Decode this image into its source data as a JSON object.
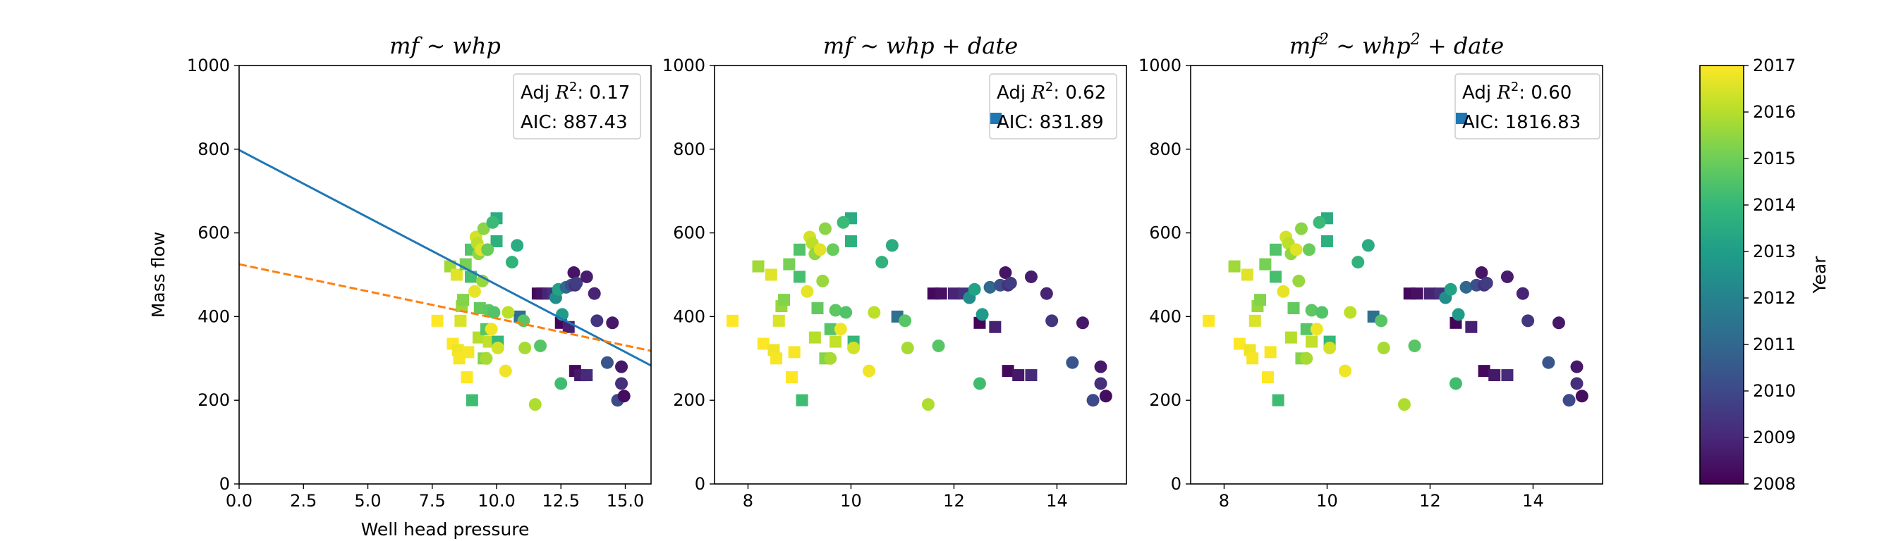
{
  "chart_data": [
    {
      "type": "scatter",
      "title": "mf ~ whp",
      "title_parts": {
        "main": "mf ~ whp",
        "sup1": "",
        "mid": "",
        "sup2": "",
        "tail": ""
      },
      "xlabel": "Well head pressure",
      "ylabel": "Mass flow",
      "xlim": [
        0,
        16
      ],
      "ylim": [
        0,
        1000
      ],
      "xticks": [
        0,
        2.5,
        5,
        7.5,
        10,
        12.5,
        15
      ],
      "xtick_labels": [
        "0.0",
        "2.5",
        "5.0",
        "7.5",
        "10.0",
        "12.5",
        "15.0"
      ],
      "yticks": [
        0,
        200,
        400,
        600,
        800,
        1000
      ],
      "ytick_labels": [
        "0",
        "200",
        "400",
        "600",
        "800",
        "1000"
      ],
      "lines": [
        {
          "x": [
            0,
            16
          ],
          "y": [
            798,
            283
          ],
          "color": "#1f77b4",
          "style": "solid"
        },
        {
          "x": [
            0,
            16
          ],
          "y": [
            525,
            318
          ],
          "color": "#ff7f0e",
          "style": "dashed"
        }
      ],
      "legend_box": {
        "line1_prefix": "Adj ",
        "line1_var": "R",
        "line1_sup": "2",
        "line1_value": ": 0.17",
        "line2": "AIC: 887.43",
        "show_marker": false
      }
    },
    {
      "type": "scatter",
      "title": "mf ~ whp + date",
      "title_parts": {
        "main": "mf ~ whp + date",
        "sup1": "",
        "mid": "",
        "sup2": "",
        "tail": ""
      },
      "xlabel": "",
      "ylabel": "",
      "xlim": [
        7.35,
        15.35
      ],
      "ylim": [
        0,
        1000
      ],
      "xticks": [
        8,
        10,
        12,
        14
      ],
      "xtick_labels": [
        "8",
        "10",
        "12",
        "14"
      ],
      "yticks": [
        0,
        200,
        400,
        600,
        800,
        1000
      ],
      "ytick_labels": [
        "0",
        "200",
        "400",
        "600",
        "800",
        "1000"
      ],
      "lines": [],
      "legend_box": {
        "line1_prefix": "Adj ",
        "line1_var": "R",
        "line1_sup": "2",
        "line1_value": ": 0.62",
        "line2": "AIC: 831.89",
        "show_marker": true
      }
    },
    {
      "type": "scatter",
      "title": "mf2 ~ whp2 + date",
      "title_parts": {
        "main": "mf",
        "sup1": "2",
        "mid": " ~ whp",
        "sup2": "2",
        "tail": " + date"
      },
      "xlabel": "",
      "ylabel": "",
      "xlim": [
        7.35,
        15.35
      ],
      "ylim": [
        0,
        1000
      ],
      "xticks": [
        8,
        10,
        12,
        14
      ],
      "xtick_labels": [
        "8",
        "10",
        "12",
        "14"
      ],
      "yticks": [
        0,
        200,
        400,
        600,
        800,
        1000
      ],
      "ytick_labels": [
        "0",
        "200",
        "400",
        "600",
        "800",
        "1000"
      ],
      "lines": [],
      "legend_box": {
        "line1_prefix": "Adj ",
        "line1_var": "R",
        "line1_sup": "2",
        "line1_value": ": 0.60",
        "line2": "AIC: 1816.83",
        "show_marker": true
      }
    }
  ],
  "points": [
    {
      "x": 7.7,
      "y": 390,
      "year": 2017.0,
      "m": "s"
    },
    {
      "x": 8.2,
      "y": 520,
      "year": 2015.7,
      "m": "s"
    },
    {
      "x": 8.3,
      "y": 335,
      "year": 2017.0,
      "m": "s"
    },
    {
      "x": 8.45,
      "y": 500,
      "year": 2016.6,
      "m": "s"
    },
    {
      "x": 8.5,
      "y": 320,
      "year": 2016.8,
      "m": "s"
    },
    {
      "x": 8.55,
      "y": 300,
      "year": 2016.9,
      "m": "s"
    },
    {
      "x": 8.6,
      "y": 390,
      "year": 2016.5,
      "m": "s"
    },
    {
      "x": 8.65,
      "y": 425,
      "year": 2015.6,
      "m": "s"
    },
    {
      "x": 8.7,
      "y": 440,
      "year": 2015.3,
      "m": "s"
    },
    {
      "x": 8.8,
      "y": 525,
      "year": 2015.1,
      "m": "s"
    },
    {
      "x": 8.85,
      "y": 255,
      "year": 2017.0,
      "m": "s"
    },
    {
      "x": 8.9,
      "y": 315,
      "year": 2016.9,
      "m": "s"
    },
    {
      "x": 9.0,
      "y": 560,
      "year": 2014.5,
      "m": "s"
    },
    {
      "x": 9.0,
      "y": 495,
      "year": 2014.3,
      "m": "s"
    },
    {
      "x": 9.05,
      "y": 200,
      "year": 2014.2,
      "m": "s"
    },
    {
      "x": 9.3,
      "y": 350,
      "year": 2016.0,
      "m": "s"
    },
    {
      "x": 9.35,
      "y": 420,
      "year": 2014.8,
      "m": "s"
    },
    {
      "x": 9.5,
      "y": 300,
      "year": 2015.3,
      "m": "s"
    },
    {
      "x": 9.6,
      "y": 370,
      "year": 2014.6,
      "m": "s"
    },
    {
      "x": 9.7,
      "y": 340,
      "year": 2016.2,
      "m": "s"
    },
    {
      "x": 10.0,
      "y": 635,
      "year": 2013.5,
      "m": "s"
    },
    {
      "x": 10.0,
      "y": 580,
      "year": 2013.7,
      "m": "s"
    },
    {
      "x": 10.05,
      "y": 340,
      "year": 2014.0,
      "m": "s"
    },
    {
      "x": 10.9,
      "y": 400,
      "year": 2011.3,
      "m": "s"
    },
    {
      "x": 11.6,
      "y": 455,
      "year": 2008.2,
      "m": "s"
    },
    {
      "x": 11.75,
      "y": 455,
      "year": 2008.4,
      "m": "s"
    },
    {
      "x": 12.0,
      "y": 455,
      "year": 2008.9,
      "m": "s"
    },
    {
      "x": 12.2,
      "y": 455,
      "year": 2009.3,
      "m": "s"
    },
    {
      "x": 12.5,
      "y": 385,
      "year": 2008.1,
      "m": "s"
    },
    {
      "x": 12.8,
      "y": 375,
      "year": 2008.8,
      "m": "s"
    },
    {
      "x": 13.05,
      "y": 270,
      "year": 2008.2,
      "m": "s"
    },
    {
      "x": 13.25,
      "y": 260,
      "year": 2008.6,
      "m": "s"
    },
    {
      "x": 13.5,
      "y": 260,
      "year": 2009.1,
      "m": "s"
    },
    {
      "x": 9.15,
      "y": 460,
      "year": 2016.7,
      "m": "o"
    },
    {
      "x": 9.2,
      "y": 590,
      "year": 2016.4,
      "m": "o"
    },
    {
      "x": 9.25,
      "y": 575,
      "year": 2016.1,
      "m": "o"
    },
    {
      "x": 9.3,
      "y": 550,
      "year": 2015.5,
      "m": "o"
    },
    {
      "x": 9.4,
      "y": 560,
      "year": 2016.6,
      "m": "o"
    },
    {
      "x": 9.45,
      "y": 485,
      "year": 2015.6,
      "m": "o"
    },
    {
      "x": 9.5,
      "y": 610,
      "year": 2015.4,
      "m": "o"
    },
    {
      "x": 9.6,
      "y": 300,
      "year": 2015.8,
      "m": "o"
    },
    {
      "x": 9.65,
      "y": 560,
      "year": 2014.9,
      "m": "o"
    },
    {
      "x": 9.7,
      "y": 415,
      "year": 2014.7,
      "m": "o"
    },
    {
      "x": 9.8,
      "y": 370,
      "year": 2016.8,
      "m": "o"
    },
    {
      "x": 9.85,
      "y": 625,
      "year": 2014.1,
      "m": "o"
    },
    {
      "x": 9.9,
      "y": 410,
      "year": 2014.5,
      "m": "o"
    },
    {
      "x": 10.05,
      "y": 325,
      "year": 2016.4,
      "m": "o"
    },
    {
      "x": 10.35,
      "y": 270,
      "year": 2016.8,
      "m": "o"
    },
    {
      "x": 10.45,
      "y": 410,
      "year": 2016.1,
      "m": "o"
    },
    {
      "x": 10.6,
      "y": 530,
      "year": 2013.8,
      "m": "o"
    },
    {
      "x": 10.8,
      "y": 570,
      "year": 2013.5,
      "m": "o"
    },
    {
      "x": 11.05,
      "y": 390,
      "year": 2014.6,
      "m": "o"
    },
    {
      "x": 11.1,
      "y": 325,
      "year": 2015.8,
      "m": "o"
    },
    {
      "x": 11.5,
      "y": 190,
      "year": 2015.9,
      "m": "o"
    },
    {
      "x": 11.7,
      "y": 330,
      "year": 2014.6,
      "m": "o"
    },
    {
      "x": 12.3,
      "y": 445,
      "year": 2012.4,
      "m": "o"
    },
    {
      "x": 12.4,
      "y": 465,
      "year": 2013.2,
      "m": "o"
    },
    {
      "x": 12.5,
      "y": 240,
      "year": 2014.2,
      "m": "o"
    },
    {
      "x": 12.55,
      "y": 405,
      "year": 2012.9,
      "m": "o"
    },
    {
      "x": 12.7,
      "y": 470,
      "year": 2011.0,
      "m": "o"
    },
    {
      "x": 12.9,
      "y": 475,
      "year": 2010.2,
      "m": "o"
    },
    {
      "x": 13.0,
      "y": 505,
      "year": 2008.5,
      "m": "o"
    },
    {
      "x": 13.05,
      "y": 475,
      "year": 2009.3,
      "m": "o"
    },
    {
      "x": 13.1,
      "y": 480,
      "year": 2009.6,
      "m": "o"
    },
    {
      "x": 13.5,
      "y": 495,
      "year": 2008.7,
      "m": "o"
    },
    {
      "x": 13.8,
      "y": 455,
      "year": 2008.9,
      "m": "o"
    },
    {
      "x": 13.9,
      "y": 390,
      "year": 2009.4,
      "m": "o"
    },
    {
      "x": 14.3,
      "y": 290,
      "year": 2010.4,
      "m": "o"
    },
    {
      "x": 14.5,
      "y": 385,
      "year": 2008.6,
      "m": "o"
    },
    {
      "x": 14.7,
      "y": 200,
      "year": 2010.0,
      "m": "o"
    },
    {
      "x": 14.85,
      "y": 280,
      "year": 2008.6,
      "m": "o"
    },
    {
      "x": 14.85,
      "y": 240,
      "year": 2009.2,
      "m": "o"
    },
    {
      "x": 14.95,
      "y": 210,
      "year": 2008.3,
      "m": "o"
    }
  ],
  "colorbar": {
    "label": "Year",
    "range": [
      2008,
      2017
    ],
    "ticks": [
      2008,
      2009,
      2010,
      2011,
      2012,
      2013,
      2014,
      2015,
      2016,
      2017
    ],
    "tick_labels": [
      "2008",
      "2009",
      "2010",
      "2011",
      "2012",
      "2013",
      "2014",
      "2015",
      "2016",
      "2017"
    ],
    "colormap": "viridis",
    "stops": [
      "#440154",
      "#482878",
      "#3e4989",
      "#31688e",
      "#26828e",
      "#1f9e89",
      "#35b779",
      "#6ece58",
      "#b5de2b",
      "#fde725"
    ]
  }
}
